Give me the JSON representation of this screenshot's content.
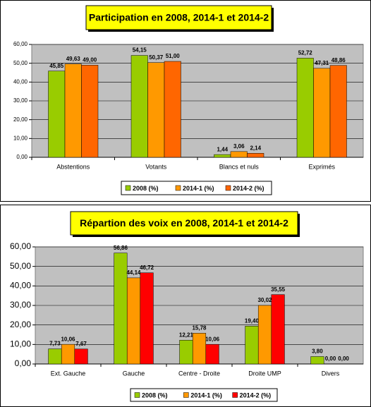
{
  "chart_data": [
    {
      "type": "bar",
      "title": "Participation en 2008, 2014-1 et 2014-2",
      "categories": [
        "Abstentions",
        "Votants",
        "Blancs et nuls",
        "Exprimés"
      ],
      "series": [
        {
          "name": "2008 (%)",
          "color": "#99cc00",
          "values": [
            45.85,
            54.15,
            1.44,
            52.72
          ],
          "value_labels": [
            "45,85",
            "54,15",
            "1,44",
            "52,72"
          ]
        },
        {
          "name": "2014-1 (%)",
          "color": "#ff9900",
          "values": [
            49.63,
            50.37,
            3.06,
            47.31
          ],
          "value_labels": [
            "49,63",
            "50,37",
            "3,06",
            "47,31"
          ]
        },
        {
          "name": "2014-2 (%)",
          "color": "#ff6600",
          "values": [
            49.0,
            51.0,
            2.14,
            48.86
          ],
          "value_labels": [
            "49,00",
            "51,00",
            "2,14",
            "48,86"
          ]
        }
      ],
      "ylim": [
        0,
        60
      ],
      "yticks": [
        {
          "value": 0,
          "label": "0,00"
        },
        {
          "value": 10,
          "label": "10,00"
        },
        {
          "value": 20,
          "label": "20,00"
        },
        {
          "value": 30,
          "label": "30,00"
        },
        {
          "value": 40,
          "label": "40,00"
        },
        {
          "value": 50,
          "label": "50,00"
        },
        {
          "value": 60,
          "label": "60,00"
        }
      ],
      "grid": true,
      "legend": "bottom"
    },
    {
      "type": "bar",
      "title": "Répartion des voix en 2008, 2014-1 et 2014-2",
      "categories": [
        "Ext. Gauche",
        "Gauche",
        "Centre - Droite",
        "Droite UMP",
        "Divers"
      ],
      "series": [
        {
          "name": "2008 (%)",
          "color": "#99cc00",
          "values": [
            7.73,
            56.86,
            12.21,
            19.4,
            3.8
          ],
          "value_labels": [
            "7,73",
            "56,86",
            "12,21",
            "19,40",
            "3,80"
          ]
        },
        {
          "name": "2014-1 (%)",
          "color": "#ff9900",
          "values": [
            10.06,
            44.14,
            15.78,
            30.02,
            0.0
          ],
          "value_labels": [
            "10,06",
            "44,14",
            "15,78",
            "30,02",
            "0,00"
          ]
        },
        {
          "name": "2014-2 (%)",
          "color": "#ff0000",
          "values": [
            7.67,
            46.72,
            10.06,
            35.55,
            0.0
          ],
          "value_labels": [
            "7,67",
            "46,72",
            "10,06",
            "35,55",
            "0,00"
          ]
        }
      ],
      "ylim": [
        0,
        60
      ],
      "yticks": [
        {
          "value": 0,
          "label": "0,00"
        },
        {
          "value": 10,
          "label": "10,00"
        },
        {
          "value": 20,
          "label": "20,00"
        },
        {
          "value": 30,
          "label": "30,00"
        },
        {
          "value": 40,
          "label": "40,00"
        },
        {
          "value": 50,
          "label": "50,00"
        },
        {
          "value": 60,
          "label": "60,00"
        }
      ],
      "grid": true,
      "legend": "bottom"
    }
  ]
}
